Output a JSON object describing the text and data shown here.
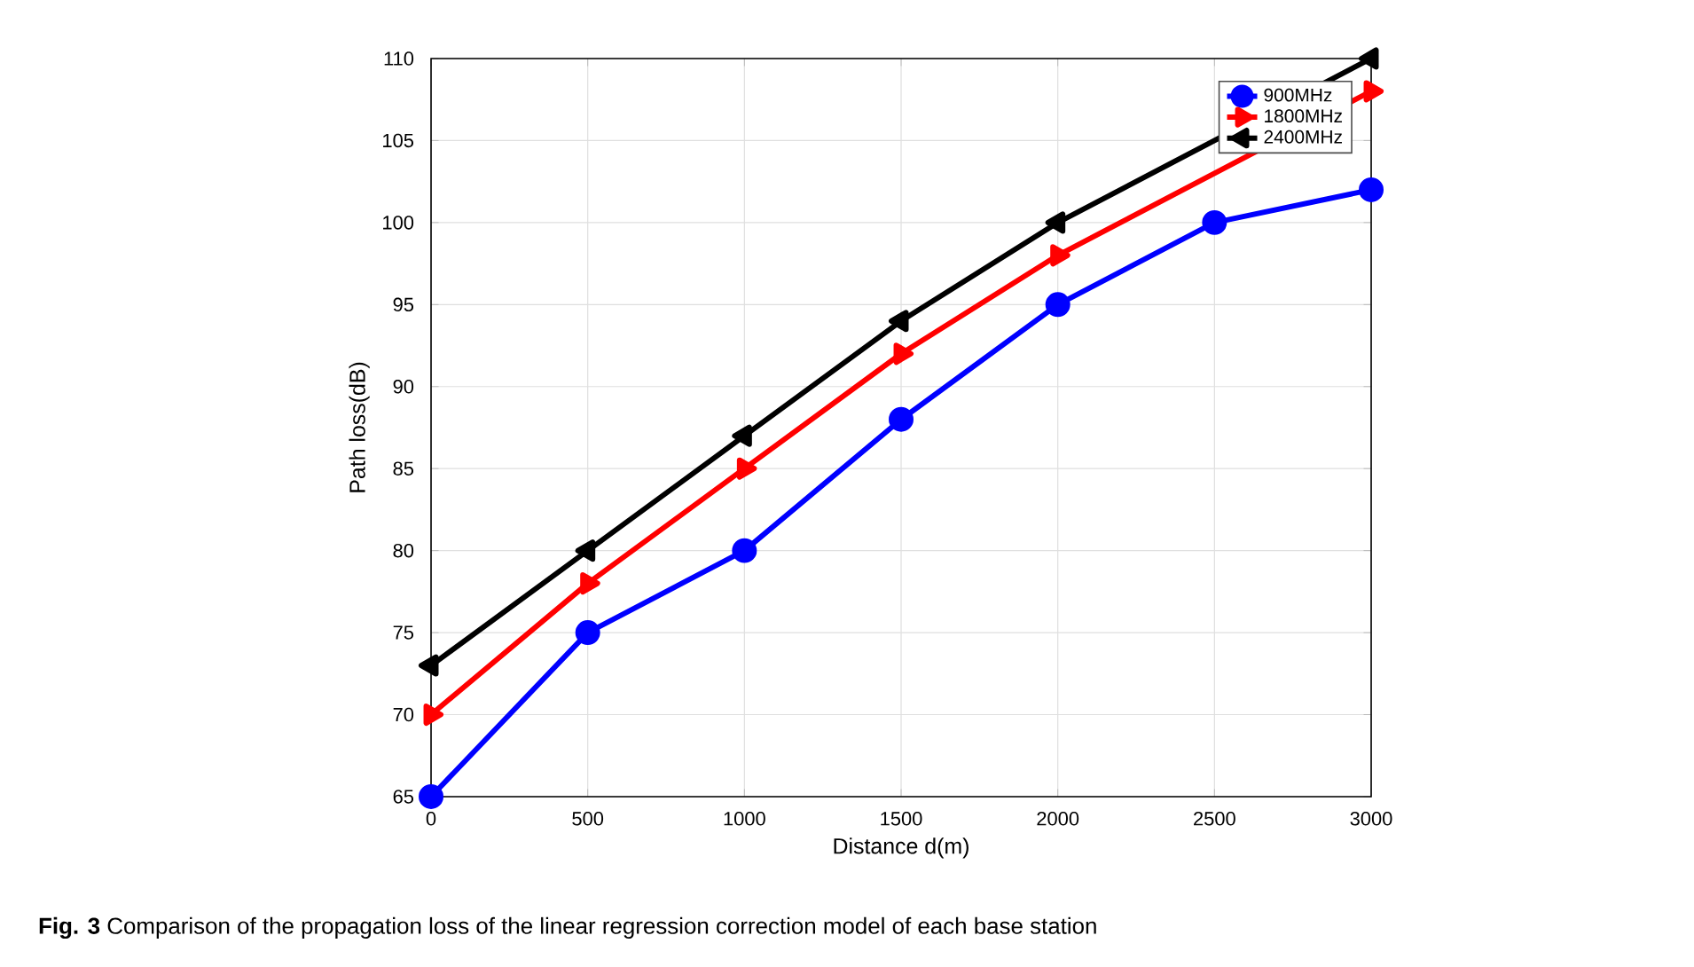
{
  "chart_data": {
    "type": "line",
    "xlabel": "Distance d(m)",
    "ylabel": "Path loss(dB)",
    "x": [
      0,
      500,
      1000,
      1500,
      2000,
      2500,
      3000
    ],
    "series": [
      {
        "name": "900MHz",
        "color": "#0000ff",
        "marker": "circle",
        "values": [
          65,
          75,
          80,
          88,
          95,
          100,
          102
        ]
      },
      {
        "name": "1800MHz",
        "color": "#ff0000",
        "marker": "triangle right",
        "values": [
          70,
          78,
          85,
          92,
          98,
          null,
          108
        ]
      },
      {
        "name": "2400MHz",
        "color": "#000000",
        "marker": "triangle left",
        "values": [
          73,
          80,
          87,
          94,
          100,
          null,
          110
        ]
      }
    ],
    "xlim": [
      0,
      3000
    ],
    "xticks": [
      0,
      500,
      1000,
      1500,
      2000,
      2500,
      3000
    ],
    "ylim": [
      65,
      110
    ],
    "yticks": [
      65,
      70,
      75,
      80,
      85,
      90,
      95,
      100,
      105,
      110
    ],
    "grid": true,
    "legend": "top right",
    "line_style": "solid",
    "annotations": [
      "**Fig. 3** Comparison of the propagation loss of the linear regression correction model of each base station"
    ]
  }
}
